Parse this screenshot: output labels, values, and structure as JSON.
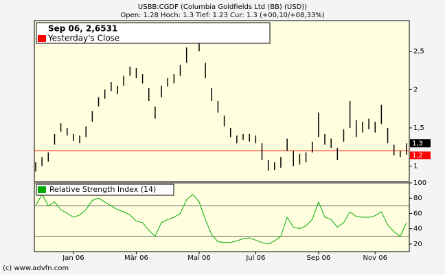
{
  "chart_data": [
    {
      "type": "range-bar",
      "title": "USBB:CGDF (Columbia Goldfields Ltd (BB) (USD))",
      "subtitle": "Open: 1.28 Hoch: 1.3 Tief: 1.23 Cur: 1.3 (+00,10/+08,33%)",
      "legend_title": "Sep 06, 2,6531",
      "legend_label": "Yesterday's Close",
      "copyright": "(c) www.advfn.com",
      "color": "#000000",
      "reference_color": "#ff0000",
      "current": {
        "value": 1.3,
        "label": "1,3"
      },
      "yesterday_close": {
        "value": 1.2,
        "label": "1,2"
      },
      "categories": [
        null,
        null,
        null,
        null,
        null,
        null,
        "Jan 06",
        null,
        null,
        null,
        null,
        null,
        null,
        null,
        null,
        null,
        "Mär 06",
        null,
        null,
        null,
        null,
        null,
        null,
        null,
        null,
        null,
        "Mai 06",
        null,
        null,
        null,
        null,
        null,
        null,
        null,
        null,
        "Jul 06",
        null,
        null,
        null,
        null,
        null,
        null,
        null,
        null,
        null,
        "Sep 06",
        null,
        null,
        null,
        null,
        null,
        null,
        null,
        null,
        "Nov 06",
        null,
        null,
        null,
        null,
        null
      ],
      "high": [
        1.05,
        1.12,
        1.18,
        1.42,
        1.56,
        1.5,
        1.42,
        1.4,
        1.52,
        1.72,
        1.9,
        2.0,
        2.1,
        2.05,
        2.18,
        2.3,
        2.28,
        2.2,
        2.02,
        1.78,
        2.05,
        2.15,
        2.2,
        2.32,
        2.55,
        2.78,
        2.66,
        2.35,
        2.02,
        1.85,
        1.66,
        1.5,
        1.4,
        1.42,
        1.42,
        1.4,
        1.3,
        1.08,
        1.05,
        1.12,
        1.36,
        1.2,
        1.16,
        1.18,
        1.32,
        1.7,
        1.42,
        1.36,
        1.24,
        1.48,
        1.85,
        1.6,
        1.58,
        1.62,
        1.58,
        1.8,
        1.5,
        1.28,
        1.2,
        1.3
      ],
      "low": [
        0.93,
        1.0,
        1.06,
        1.28,
        1.45,
        1.4,
        1.33,
        1.3,
        1.38,
        1.58,
        1.78,
        1.88,
        1.98,
        1.94,
        2.05,
        2.18,
        2.15,
        2.08,
        1.85,
        1.62,
        1.9,
        2.04,
        2.08,
        2.18,
        2.35,
        2.6,
        2.5,
        2.15,
        1.85,
        1.7,
        1.52,
        1.38,
        1.3,
        1.34,
        1.32,
        1.3,
        1.08,
        0.94,
        0.95,
        0.98,
        1.2,
        1.0,
        1.02,
        1.05,
        1.18,
        1.38,
        1.28,
        1.24,
        1.08,
        1.32,
        1.5,
        1.38,
        1.44,
        1.48,
        1.44,
        1.55,
        1.3,
        1.14,
        1.12,
        1.15
      ],
      "ylim": [
        0.8,
        2.9
      ],
      "yticks": [
        1,
        {
          "value": 1.5,
          "label": "1,5"
        },
        2,
        {
          "value": 2.5,
          "label": "2,5"
        }
      ]
    },
    {
      "type": "line",
      "legend_label": "Relative Strength Index (14)",
      "color": "#00aa00",
      "values": [
        70,
        85,
        70,
        75,
        65,
        60,
        55,
        58,
        65,
        77,
        80,
        75,
        70,
        65,
        62,
        58,
        50,
        48,
        38,
        30,
        48,
        52,
        55,
        60,
        78,
        85,
        75,
        52,
        32,
        23,
        22,
        22,
        24,
        27,
        28,
        25,
        22,
        20,
        24,
        30,
        55,
        42,
        40,
        44,
        52,
        75,
        55,
        52,
        42,
        48,
        62,
        56,
        55,
        55,
        57,
        62,
        45,
        36,
        30,
        48
      ],
      "hlines": [
        70,
        30
      ],
      "ylim": [
        10,
        100
      ],
      "yticks": [
        20,
        40,
        60,
        80,
        100
      ]
    }
  ]
}
